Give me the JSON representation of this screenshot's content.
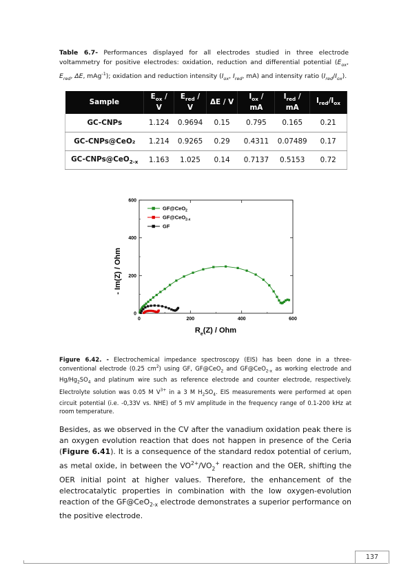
{
  "table_caption": {
    "label": "Table 6.7-",
    "t1": " Performances displayed for all electrodes studied in three electrode voltammetry for positive electrodes: oxidation, reduction and differential potential (",
    "e_ox": "E",
    "ox": "ox",
    "comma1": ", ",
    "e_red": "E",
    "red": "red",
    "comma2": ", ",
    "de": "ΔE",
    "t2": ", mAg",
    "sup1": "-1",
    "t3": "); oxidation and reduction intensity (",
    "i_ox": "I",
    "ox2": "ox",
    "comma3": ", ",
    "i_red": "I",
    "red2": "red",
    "t4": ", mA) and intensity ratio (",
    "i_red3": "I",
    "red3": "red",
    "slash": "/",
    "i_ox4": "I",
    "ox4": "ox",
    "t5": ")."
  },
  "table": {
    "headers": {
      "sample": "Sample",
      "eox": "E",
      "eox_sub": "ox",
      "eox_unit": " /",
      "eox_v": "V",
      "ered": "E",
      "ered_sub": "red",
      "ered_unit": " /",
      "ered_v": "V",
      "de": "ΔE / V",
      "iox": "I",
      "iox_sub": "ox",
      "iox_unit": " /",
      "iox_ma": "mA",
      "ired": "I",
      "ired_sub": "red",
      "ired_unit": " /",
      "ired_ma": "mA",
      "ratio_i1": "I",
      "ratio_sub1": "red",
      "ratio_slash": "/I",
      "ratio_sub2": "ox"
    },
    "rows": [
      {
        "sample": "GC-CNPs",
        "sample_sub": "",
        "eox": "1.124",
        "ered": "0.9694",
        "de": "0.15",
        "iox": "0.795",
        "ired": "0.165",
        "ratio": "0.21"
      },
      {
        "sample": "GC-CNPs@CeO₂",
        "sample_sub": "",
        "eox": "1.214",
        "ered": "0.9265",
        "de": "0.29",
        "iox": "0.4311",
        "ired": "0.07489",
        "ratio": "0.17"
      },
      {
        "sample": "GC-CNPs@CeO",
        "sample_sub": "2-x",
        "eox": "1.163",
        "ered": "1.025",
        "de": "0.14",
        "iox": "0.7137",
        "ired": "0.5153",
        "ratio": "0.72"
      }
    ]
  },
  "chart_data": {
    "type": "scatter",
    "xlabel": "R",
    "xlabel_sub": "e",
    "xlabel_rest": "(Z) / Ohm",
    "ylabel": "- Im(Z) / Ohm",
    "xlim": [
      0,
      600
    ],
    "ylim": [
      0,
      600
    ],
    "xticks": [
      "0",
      "200",
      "400",
      "600"
    ],
    "yticks": [
      "0",
      "200",
      "400",
      "600"
    ],
    "legend": {
      "position": "top-left"
    },
    "series": [
      {
        "name": "GF@CeO",
        "name_sub": "2",
        "color": "#228b22",
        "marker": "square",
        "points": [
          [
            2,
            4
          ],
          [
            4,
            10
          ],
          [
            6,
            17
          ],
          [
            9,
            24
          ],
          [
            12,
            31
          ],
          [
            16,
            37
          ],
          [
            21,
            43
          ],
          [
            27,
            51
          ],
          [
            35,
            61
          ],
          [
            44,
            71
          ],
          [
            55,
            84
          ],
          [
            68,
            97
          ],
          [
            83,
            113
          ],
          [
            100,
            129
          ],
          [
            120,
            150
          ],
          [
            145,
            173
          ],
          [
            175,
            195
          ],
          [
            210,
            215
          ],
          [
            250,
            233
          ],
          [
            290,
            245
          ],
          [
            338,
            248
          ],
          [
            385,
            240
          ],
          [
            420,
            226
          ],
          [
            455,
            205
          ],
          [
            485,
            178
          ],
          [
            508,
            148
          ],
          [
            525,
            116
          ],
          [
            538,
            87
          ],
          [
            546,
            68
          ],
          [
            552,
            56
          ],
          [
            557,
            53
          ],
          [
            561,
            56
          ],
          [
            566,
            61
          ],
          [
            572,
            68
          ],
          [
            579,
            72
          ],
          [
            585,
            70
          ]
        ]
      },
      {
        "name": "GF@CeO",
        "name_sub": "2-x",
        "color": "#e00000",
        "marker": "square",
        "points": [
          [
            18,
            2
          ],
          [
            22,
            7
          ],
          [
            27,
            10
          ],
          [
            33,
            12
          ],
          [
            40,
            13
          ],
          [
            47,
            13
          ],
          [
            54,
            12
          ],
          [
            60,
            10
          ],
          [
            65,
            8
          ],
          [
            70,
            7
          ],
          [
            74,
            10
          ],
          [
            76,
            14
          ]
        ]
      },
      {
        "name": "GF",
        "name_sub": "",
        "color": "#111111",
        "marker": "square",
        "points": [
          [
            6,
            2
          ],
          [
            10,
            12
          ],
          [
            16,
            22
          ],
          [
            24,
            31
          ],
          [
            34,
            37
          ],
          [
            46,
            40
          ],
          [
            60,
            41
          ],
          [
            75,
            40
          ],
          [
            90,
            37
          ],
          [
            104,
            32
          ],
          [
            116,
            26
          ],
          [
            126,
            20
          ],
          [
            134,
            16
          ],
          [
            140,
            14
          ],
          [
            145,
            17
          ],
          [
            149,
            23
          ],
          [
            152,
            28
          ]
        ]
      }
    ]
  },
  "figure_caption": {
    "label": "Figure 6.42. -",
    "t1": " Electrochemical impedance spectroscopy (EIS) has been done in a three-conventional electrode (0.25 cm",
    "sup1": "2",
    "t2": ") using GF, GF@CeO",
    "sub1": "2",
    "t3": " and GF@CeO",
    "sub2": "2-x",
    "t4": " as working electrode and Hg/Hg",
    "sub3": "2",
    "t5": "SO",
    "sub4": "4",
    "t6": " and platinum wire such as reference electrode and counter electrode, respectively. Electrolyte solution was 0.05 M V",
    "sup2": "3+",
    "t7": " in a 3 M H",
    "sub5": "2",
    "t8": "SO",
    "sub6": "4",
    "t9": ". EIS measurements were performed at open circuit potential (i.e. -0,33V vs. NHE) of 5 mV amplitude in the frequency range of 0.1-200 kHz at room temperature."
  },
  "body": {
    "t1": "Besides, as we observed in the CV after the vanadium oxidation peak there is an oxygen evolution reaction that does not happen in presence of the Ceria (",
    "fig_ref": "Figure 6.41",
    "t2": "). It is a consequence of the standard redox potential of cerium, as metal oxide, in between the VO",
    "sup1": "2+",
    "t3": "/VO",
    "sub1": "2",
    "sup2": "+",
    "t4": " reaction and the OER, shifting the OER initial point at higher values. Therefore, the enhancement of the electrocatalytic properties in combination with the low oxygen-evolution reaction of the GF@CeO",
    "sub2": "2-x",
    "t5": " electrode demonstrates a superior performance on the positive electrode."
  },
  "page_number": "137"
}
